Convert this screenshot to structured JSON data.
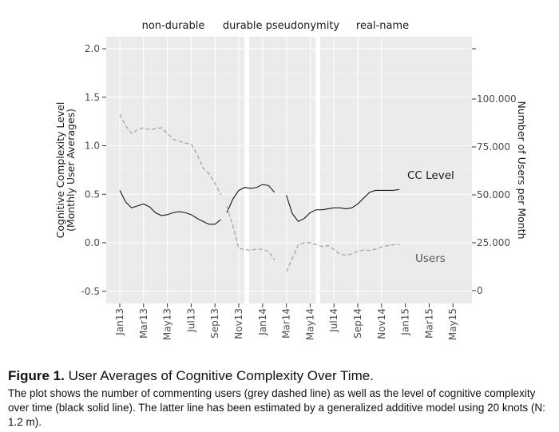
{
  "chart_data": {
    "type": "line",
    "panels": [
      "non-durable",
      "durable pseudonymity",
      "real-name"
    ],
    "x_ticks": [
      "Jan13",
      "Mar13",
      "May13",
      "Jul13",
      "Sep13",
      "Nov13",
      "Jan14",
      "Mar14",
      "May14",
      "Jul14",
      "Sep14",
      "Nov14",
      "Jan15",
      "Mar15",
      "May15"
    ],
    "ylabel_left_line1": "Cognitive Complexity Level",
    "ylabel_left_line2": "(Monthly User Averages)",
    "ylabel_right": "Number of Users per Month",
    "ylim_left": [
      -0.6,
      2.0
    ],
    "yticks_left": [
      "-0.5",
      "0.0",
      "0.5",
      "1.0",
      "1.5",
      "2.0"
    ],
    "yticks_right": [
      "0",
      "25.000",
      "50.000",
      "75.000",
      "100.000"
    ],
    "grid": true,
    "series": [
      {
        "name": "CC Level",
        "style": "solid",
        "color": "#000000",
        "axis": "left",
        "segments": [
          [
            [
              0,
              0.54
            ],
            [
              0.5,
              0.42
            ],
            [
              1,
              0.36
            ],
            [
              1.5,
              0.38
            ],
            [
              2,
              0.4
            ],
            [
              2.5,
              0.37
            ],
            [
              3,
              0.31
            ],
            [
              3.5,
              0.28
            ],
            [
              4,
              0.29
            ],
            [
              4.5,
              0.31
            ],
            [
              5,
              0.32
            ],
            [
              5.5,
              0.31
            ],
            [
              6,
              0.29
            ],
            [
              6.5,
              0.25
            ],
            [
              7,
              0.22
            ],
            [
              7.5,
              0.19
            ],
            [
              8,
              0.19
            ],
            [
              8.5,
              0.24
            ]
          ],
          [
            [
              9,
              0.31
            ],
            [
              9.5,
              0.45
            ],
            [
              10,
              0.54
            ],
            [
              10.5,
              0.57
            ],
            [
              11,
              0.56
            ],
            [
              11.5,
              0.57
            ],
            [
              12,
              0.6
            ],
            [
              12.5,
              0.59
            ],
            [
              13,
              0.52
            ]
          ],
          [
            [
              14,
              0.49
            ],
            [
              14.5,
              0.3
            ],
            [
              15,
              0.22
            ],
            [
              15.5,
              0.25
            ],
            [
              16,
              0.31
            ],
            [
              16.5,
              0.34
            ],
            [
              17,
              0.34
            ],
            [
              17.5,
              0.35
            ],
            [
              18,
              0.36
            ],
            [
              18.5,
              0.36
            ],
            [
              19,
              0.35
            ],
            [
              19.5,
              0.36
            ],
            [
              20,
              0.4
            ],
            [
              20.5,
              0.46
            ],
            [
              21,
              0.52
            ],
            [
              21.5,
              0.54
            ],
            [
              22,
              0.54
            ],
            [
              22.5,
              0.54
            ],
            [
              23,
              0.54
            ],
            [
              23.5,
              0.55
            ]
          ]
        ]
      },
      {
        "name": "Users",
        "style": "dashed",
        "color": "#a6a6a6",
        "axis": "right",
        "segments": [
          [
            [
              0,
              92000
            ],
            [
              0.5,
              86000
            ],
            [
              1,
              82000
            ],
            [
              1.5,
              84000
            ],
            [
              2,
              85000
            ],
            [
              2.5,
              84000
            ],
            [
              3,
              84500
            ],
            [
              3.5,
              85000
            ],
            [
              4,
              82000
            ],
            [
              4.5,
              79000
            ],
            [
              5,
              78000
            ],
            [
              5.5,
              77000
            ],
            [
              6,
              76500
            ],
            [
              6.5,
              71000
            ],
            [
              7,
              64000
            ],
            [
              7.5,
              61000
            ],
            [
              8,
              56000
            ],
            [
              8.5,
              50000
            ]
          ],
          [
            [
              9,
              44000
            ],
            [
              9.5,
              34000
            ],
            [
              10,
              22000
            ],
            [
              10.5,
              21500
            ],
            [
              11,
              21000
            ],
            [
              11.5,
              21800
            ],
            [
              12,
              21500
            ],
            [
              12.5,
              20500
            ],
            [
              13,
              16000
            ]
          ],
          [
            [
              14,
              10000
            ],
            [
              14.5,
              17000
            ],
            [
              15,
              24000
            ],
            [
              15.5,
              25000
            ],
            [
              16,
              25000
            ],
            [
              16.5,
              24000
            ],
            [
              17,
              23000
            ],
            [
              17.5,
              23500
            ],
            [
              18,
              21500
            ],
            [
              18.5,
              19000
            ],
            [
              19,
              18500
            ],
            [
              19.5,
              19200
            ],
            [
              20,
              20500
            ],
            [
              20.5,
              21200
            ],
            [
              21,
              21000
            ],
            [
              21.5,
              21700
            ],
            [
              22,
              22800
            ],
            [
              22.5,
              23500
            ],
            [
              23,
              24000
            ],
            [
              23.5,
              24000
            ]
          ]
        ]
      }
    ],
    "annotations": {
      "cc_level": "CC Level",
      "users": "Users"
    }
  },
  "caption": {
    "figure_label": "Figure 1.",
    "figure_title": "User Averages of Cognitive Complexity Over Time.",
    "text": "The plot shows the number of commenting users (grey dashed line) as well as the level of cognitive complexity over time (black solid line). The latter line has been estimated by a generalized additive model using 20 knots (N: 1.2 m)."
  }
}
